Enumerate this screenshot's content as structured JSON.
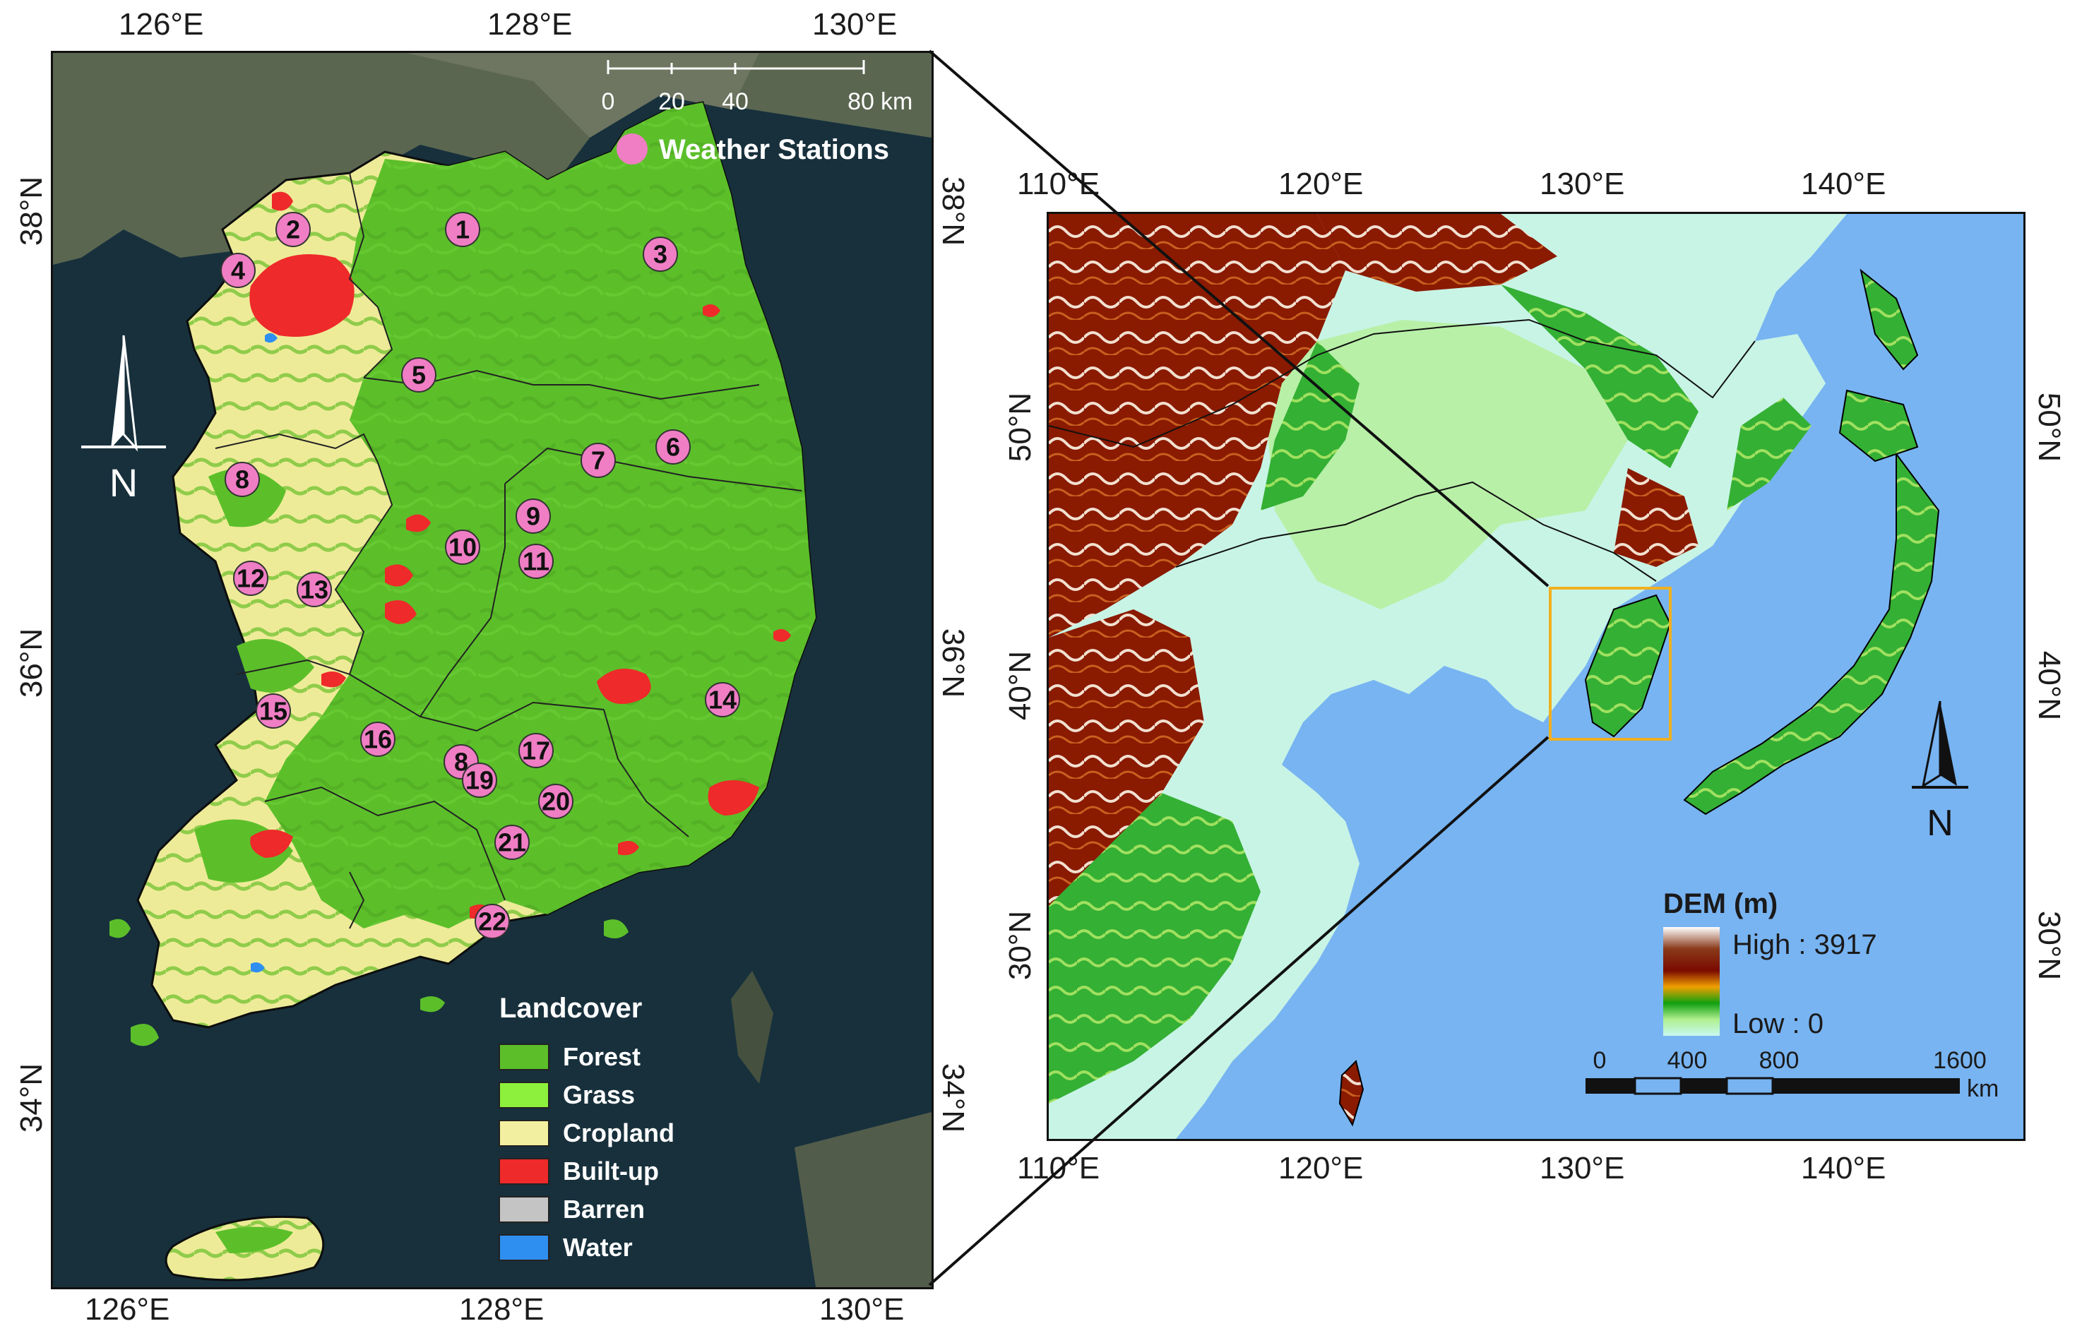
{
  "left_map": {
    "ticks_top": [
      "126°E",
      "128°E",
      "130°E"
    ],
    "ticks_bottom": [
      "126°E",
      "128°E",
      "130°E"
    ],
    "ticks_left": [
      "38°N",
      "36°N",
      "34°N"
    ],
    "ticks_right": [
      "38°N",
      "36°N",
      "34°N"
    ],
    "scale": {
      "labels": [
        "0",
        "20",
        "40",
        "80"
      ],
      "unit": "km"
    },
    "stations_label": "Weather Stations",
    "north_label": "N",
    "stations": [
      "1",
      "2",
      "3",
      "4",
      "5",
      "6",
      "7",
      "8",
      "9",
      "10",
      "11",
      "12",
      "13",
      "14",
      "15",
      "16",
      "17",
      "8",
      "19",
      "20",
      "21",
      "22"
    ],
    "legend": {
      "title": "Landcover",
      "items": [
        {
          "label": "Forest",
          "color": "#5cbf2a"
        },
        {
          "label": "Grass",
          "color": "#8cf03c"
        },
        {
          "label": "Cropland",
          "color": "#f2f0a0"
        },
        {
          "label": "Built-up",
          "color": "#ee2a2a"
        },
        {
          "label": "Barren",
          "color": "#c4c4c4"
        },
        {
          "label": "Water",
          "color": "#2f8ff0"
        }
      ]
    },
    "station_color": "#f07ec4",
    "sea_color": "#17303c"
  },
  "right_map": {
    "ticks_top": [
      "110°E",
      "120°E",
      "130°E",
      "140°E"
    ],
    "ticks_bottom": [
      "110°E",
      "120°E",
      "130°E",
      "140°E"
    ],
    "ticks_left": [
      "50°N",
      "40°N",
      "30°N"
    ],
    "ticks_right": [
      "50°N",
      "40°N",
      "30°N"
    ],
    "legend": {
      "title": "DEM (m)",
      "high": "High : 3917",
      "low": "Low : 0"
    },
    "scale": {
      "labels": [
        "0",
        "400",
        "800",
        "1600"
      ],
      "unit": "km"
    },
    "north_label": "N",
    "sea_color": "#78b4f2",
    "box_color": "#f0b020"
  }
}
